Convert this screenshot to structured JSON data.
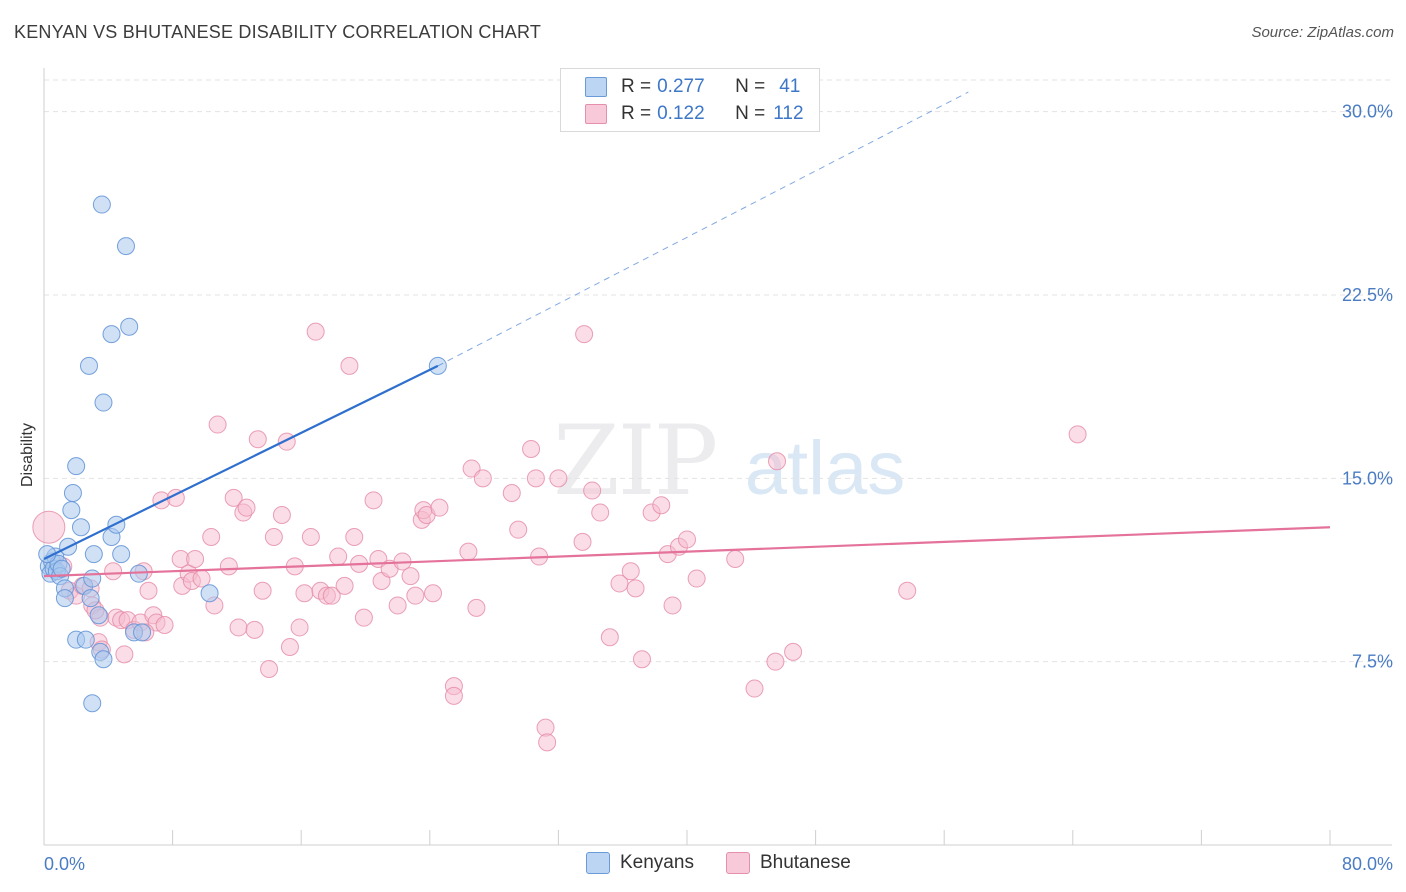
{
  "header": {
    "title": "KENYAN VS BHUTANESE DISABILITY CORRELATION CHART",
    "source": "Source: ZipAtlas.com"
  },
  "watermark": {
    "zip": "ZIP",
    "atlas": "atlas"
  },
  "legend_top": {
    "rows": [
      {
        "r_label": "R =",
        "r_value": "0.277",
        "n_label": "N =",
        "n_value": "41"
      },
      {
        "r_label": "R =",
        "r_value": "0.122",
        "n_label": "N =",
        "n_value": "112"
      }
    ]
  },
  "colors": {
    "kenyan_fill": "#a9c8ee",
    "kenyan_stroke": "#5f92d6",
    "kenyan_line": "#2f6fce",
    "bhutanese_fill": "#f6bccd",
    "bhutanese_stroke": "#e58aa6",
    "bhutanese_line": "#e4729a",
    "tick_label": "#4a7cc4",
    "grid": "#e3e3e3"
  },
  "chart_data": {
    "type": "scatter",
    "title": "KENYAN VS BHUTANESE DISABILITY CORRELATION CHART",
    "xlabel": "",
    "ylabel": "Disability",
    "xlim": [
      0,
      80
    ],
    "ylim": [
      0,
      31.5
    ],
    "x_tick_labels": [
      "0.0%",
      "80.0%"
    ],
    "y_ticks": [
      7.5,
      15.0,
      22.5,
      30.0
    ],
    "y_tick_labels": [
      "7.5%",
      "15.0%",
      "22.5%",
      "30.0%"
    ],
    "grid": true,
    "legend_placement": "bottom-center",
    "series": [
      {
        "name": "Kenyans",
        "r": 0.277,
        "n": 41,
        "trend": {
          "x": [
            0,
            24.5
          ],
          "y": [
            11.7,
            19.6
          ],
          "dashed_extension_to": [
            57.5,
            30.8
          ]
        },
        "points": [
          [
            0.3,
            11.4
          ],
          [
            0.4,
            11.1
          ],
          [
            0.5,
            11.6
          ],
          [
            0.6,
            11.3
          ],
          [
            0.7,
            11.8
          ],
          [
            0.8,
            11.2
          ],
          [
            0.9,
            11.5
          ],
          [
            1.0,
            11.0
          ],
          [
            1.1,
            11.3
          ],
          [
            1.3,
            10.5
          ],
          [
            1.3,
            10.1
          ],
          [
            1.5,
            12.2
          ],
          [
            1.7,
            13.7
          ],
          [
            1.8,
            14.4
          ],
          [
            2.0,
            15.5
          ],
          [
            2.0,
            8.4
          ],
          [
            2.3,
            13.0
          ],
          [
            2.5,
            10.6
          ],
          [
            2.6,
            8.4
          ],
          [
            2.8,
            19.6
          ],
          [
            2.9,
            10.1
          ],
          [
            3.0,
            10.9
          ],
          [
            3.0,
            5.8
          ],
          [
            3.1,
            11.9
          ],
          [
            3.4,
            9.4
          ],
          [
            3.5,
            7.9
          ],
          [
            3.6,
            26.2
          ],
          [
            3.7,
            7.6
          ],
          [
            3.7,
            18.1
          ],
          [
            4.2,
            12.6
          ],
          [
            4.2,
            20.9
          ],
          [
            4.5,
            13.1
          ],
          [
            4.8,
            11.9
          ],
          [
            5.1,
            24.5
          ],
          [
            5.3,
            21.2
          ],
          [
            5.6,
            8.7
          ],
          [
            5.9,
            11.1
          ],
          [
            6.1,
            8.7
          ],
          [
            10.3,
            10.3
          ],
          [
            24.5,
            19.6
          ],
          [
            0.2,
            11.9
          ]
        ]
      },
      {
        "name": "Bhutanese",
        "r": 0.122,
        "n": 112,
        "trend": {
          "x": [
            0,
            80
          ],
          "y": [
            11.0,
            13.0
          ]
        },
        "points": [
          [
            0.3,
            13.0
          ],
          [
            1.2,
            11.4
          ],
          [
            1.6,
            10.4
          ],
          [
            2.0,
            10.2
          ],
          [
            2.4,
            10.6
          ],
          [
            2.9,
            10.5
          ],
          [
            3.0,
            9.8
          ],
          [
            3.4,
            8.3
          ],
          [
            3.5,
            9.3
          ],
          [
            3.6,
            8.0
          ],
          [
            4.3,
            11.2
          ],
          [
            4.5,
            9.3
          ],
          [
            4.8,
            9.2
          ],
          [
            5.0,
            7.8
          ],
          [
            5.2,
            9.2
          ],
          [
            5.6,
            8.8
          ],
          [
            6.0,
            9.1
          ],
          [
            6.2,
            11.2
          ],
          [
            6.5,
            10.4
          ],
          [
            6.8,
            9.4
          ],
          [
            7.0,
            9.1
          ],
          [
            7.3,
            14.1
          ],
          [
            7.5,
            9.0
          ],
          [
            8.2,
            14.2
          ],
          [
            8.5,
            11.7
          ],
          [
            8.6,
            10.6
          ],
          [
            9.0,
            11.1
          ],
          [
            9.2,
            10.8
          ],
          [
            9.4,
            11.7
          ],
          [
            9.8,
            10.9
          ],
          [
            10.4,
            12.6
          ],
          [
            10.6,
            9.8
          ],
          [
            10.8,
            17.2
          ],
          [
            11.5,
            11.4
          ],
          [
            11.8,
            14.2
          ],
          [
            12.1,
            8.9
          ],
          [
            12.4,
            13.6
          ],
          [
            12.6,
            13.8
          ],
          [
            13.1,
            8.8
          ],
          [
            13.3,
            16.6
          ],
          [
            13.6,
            10.4
          ],
          [
            14.0,
            7.2
          ],
          [
            14.3,
            12.6
          ],
          [
            14.8,
            13.5
          ],
          [
            15.1,
            16.5
          ],
          [
            15.3,
            8.1
          ],
          [
            15.6,
            11.4
          ],
          [
            15.9,
            8.9
          ],
          [
            16.2,
            10.3
          ],
          [
            16.6,
            12.6
          ],
          [
            16.9,
            21.0
          ],
          [
            17.2,
            10.4
          ],
          [
            17.6,
            10.2
          ],
          [
            17.9,
            10.2
          ],
          [
            18.3,
            11.8
          ],
          [
            18.7,
            10.6
          ],
          [
            19.0,
            19.6
          ],
          [
            19.3,
            12.6
          ],
          [
            19.6,
            11.5
          ],
          [
            19.9,
            9.3
          ],
          [
            20.5,
            14.1
          ],
          [
            20.8,
            11.7
          ],
          [
            21.0,
            10.8
          ],
          [
            21.5,
            11.3
          ],
          [
            22.0,
            9.8
          ],
          [
            22.3,
            11.6
          ],
          [
            22.8,
            11.0
          ],
          [
            23.1,
            10.2
          ],
          [
            23.5,
            13.3
          ],
          [
            23.6,
            13.7
          ],
          [
            23.8,
            13.5
          ],
          [
            24.2,
            10.3
          ],
          [
            24.6,
            13.8
          ],
          [
            25.5,
            6.5
          ],
          [
            25.5,
            6.1
          ],
          [
            26.4,
            12.0
          ],
          [
            26.6,
            15.4
          ],
          [
            26.9,
            9.7
          ],
          [
            27.3,
            15.0
          ],
          [
            29.1,
            14.4
          ],
          [
            29.5,
            12.9
          ],
          [
            30.3,
            16.2
          ],
          [
            30.6,
            15.0
          ],
          [
            30.8,
            11.8
          ],
          [
            31.2,
            4.8
          ],
          [
            31.3,
            4.2
          ],
          [
            32.0,
            15.0
          ],
          [
            33.5,
            12.4
          ],
          [
            33.6,
            20.9
          ],
          [
            34.1,
            14.5
          ],
          [
            34.6,
            13.6
          ],
          [
            35.2,
            8.5
          ],
          [
            35.8,
            10.7
          ],
          [
            36.5,
            11.2
          ],
          [
            36.8,
            10.5
          ],
          [
            37.2,
            7.6
          ],
          [
            37.8,
            13.6
          ],
          [
            38.4,
            13.9
          ],
          [
            38.8,
            11.9
          ],
          [
            39.1,
            9.8
          ],
          [
            39.5,
            12.2
          ],
          [
            40.0,
            12.5
          ],
          [
            40.6,
            10.9
          ],
          [
            43.0,
            11.7
          ],
          [
            44.2,
            6.4
          ],
          [
            45.5,
            7.5
          ],
          [
            45.6,
            15.7
          ],
          [
            46.6,
            7.9
          ],
          [
            53.7,
            10.4
          ],
          [
            64.3,
            16.8
          ],
          [
            6.3,
            8.7
          ],
          [
            3.2,
            9.6
          ]
        ]
      }
    ]
  },
  "legend_bottom": [
    {
      "label": "Kenyans"
    },
    {
      "label": "Bhutanese"
    }
  ]
}
